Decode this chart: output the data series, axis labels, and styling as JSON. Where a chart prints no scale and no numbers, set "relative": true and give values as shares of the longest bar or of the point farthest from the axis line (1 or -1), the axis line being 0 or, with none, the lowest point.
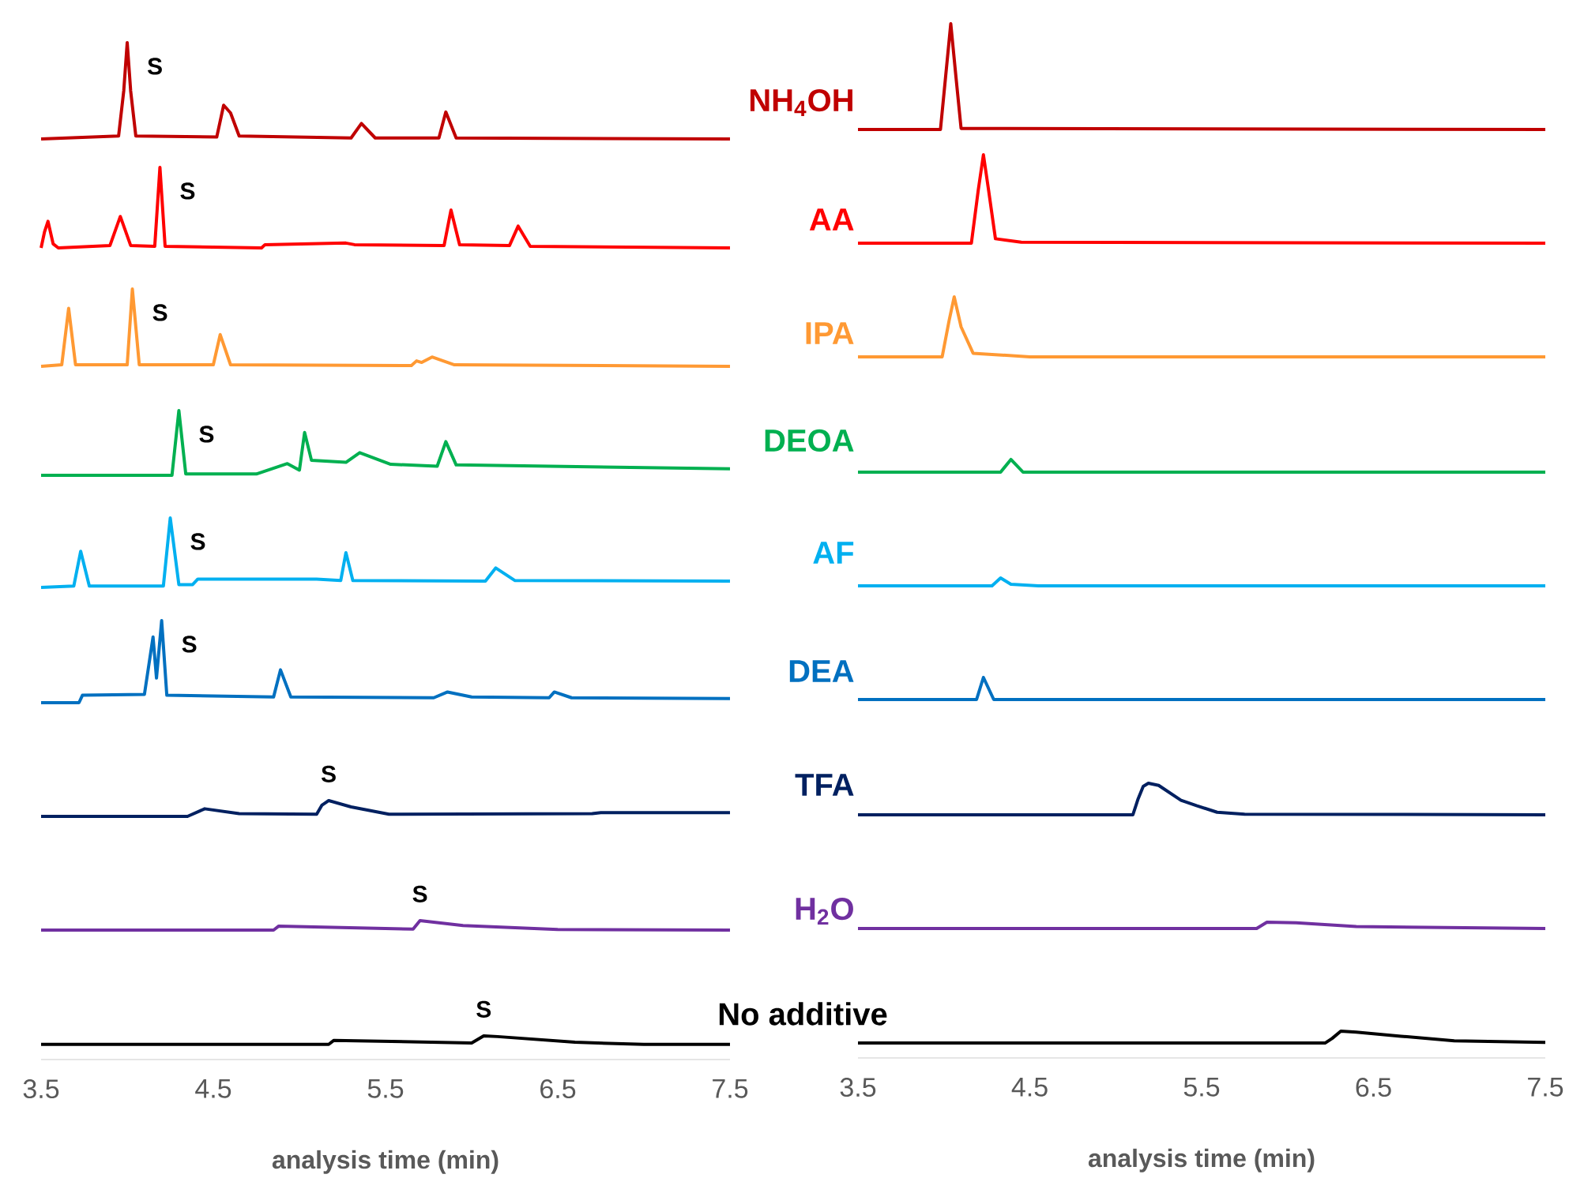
{
  "chart_data": [
    {
      "type": "line",
      "relative": true,
      "xlim": [
        3.5,
        7.5
      ],
      "tick_labels": false,
      "annotations": [
        {
          "text": "S",
          "x": 4.0,
          "y": 1.0
        }
      ],
      "series": [
        {
          "name": "NH$_{4}$OH",
          "color": "#c00000",
          "x": [
            3.5,
            3.95,
            3.98,
            4.0,
            4.02,
            4.05,
            4.52,
            4.56,
            4.6,
            4.65,
            5.3,
            5.36,
            5.44,
            5.81,
            5.85,
            5.91,
            7.5
          ],
          "values": [
            0.0,
            0.03,
            0.5,
            1.0,
            0.5,
            0.03,
            0.02,
            0.35,
            0.27,
            0.03,
            0.01,
            0.16,
            0.01,
            0.01,
            0.28,
            0.01,
            0.0
          ]
        }
      ]
    },
    {
      "type": "line",
      "relative": true,
      "xlim": [
        3.5,
        7.5
      ],
      "tick_labels": false,
      "series": [
        {
          "color": "#c00000",
          "x": [
            3.5,
            3.98,
            4.01,
            4.04,
            4.07,
            4.1,
            7.5
          ],
          "values": [
            0.0,
            0.0,
            0.5,
            1.0,
            0.5,
            0.01,
            0.0
          ]
        }
      ]
    },
    {
      "type": "line",
      "relative": true,
      "xlim": [
        3.5,
        7.5
      ],
      "tick_labels": false,
      "annotations": [
        {
          "text": "S",
          "x": 4.19,
          "y": 1.0
        }
      ],
      "series": [
        {
          "name": "AA",
          "color": "#ff0000",
          "x": [
            3.5,
            3.52,
            3.54,
            3.57,
            3.6,
            3.9,
            3.96,
            4.02,
            4.16,
            4.19,
            4.22,
            4.78,
            4.8,
            5.27,
            5.32,
            5.84,
            5.88,
            5.93,
            6.22,
            6.27,
            6.34,
            7.5
          ],
          "values": [
            0.0,
            0.2,
            0.33,
            0.05,
            0.0,
            0.03,
            0.39,
            0.03,
            0.02,
            1.0,
            0.02,
            0.0,
            0.04,
            0.06,
            0.04,
            0.03,
            0.47,
            0.04,
            0.03,
            0.27,
            0.02,
            0.0
          ]
        }
      ]
    },
    {
      "type": "line",
      "relative": true,
      "xlim": [
        3.5,
        7.5
      ],
      "tick_labels": false,
      "series": [
        {
          "color": "#ff0000",
          "x": [
            3.5,
            4.16,
            4.2,
            4.23,
            4.26,
            4.3,
            4.45,
            7.5
          ],
          "values": [
            0.0,
            0.0,
            0.6,
            1.0,
            0.6,
            0.05,
            0.01,
            0.0
          ]
        }
      ]
    },
    {
      "type": "line",
      "relative": true,
      "xlim": [
        3.5,
        7.5
      ],
      "tick_labels": false,
      "annotations": [
        {
          "text": "S",
          "x": 4.03,
          "y": 1.0
        }
      ],
      "series": [
        {
          "name": "IPA",
          "color": "#ff9933",
          "x": [
            3.5,
            3.62,
            3.66,
            3.7,
            4.0,
            4.03,
            4.07,
            4.5,
            4.54,
            4.6,
            5.65,
            5.68,
            5.71,
            5.77,
            5.9,
            7.5
          ],
          "values": [
            0.0,
            0.02,
            0.75,
            0.02,
            0.02,
            1.0,
            0.02,
            0.02,
            0.41,
            0.02,
            0.01,
            0.07,
            0.05,
            0.12,
            0.02,
            0.0
          ]
        }
      ]
    },
    {
      "type": "line",
      "relative": true,
      "xlim": [
        3.5,
        7.5
      ],
      "tick_labels": false,
      "series": [
        {
          "color": "#ff9933",
          "x": [
            3.5,
            3.99,
            4.03,
            4.06,
            4.1,
            4.17,
            4.5,
            7.5
          ],
          "values": [
            0.0,
            0.0,
            0.6,
            1.0,
            0.5,
            0.06,
            0.0,
            0.0
          ]
        }
      ]
    },
    {
      "type": "line",
      "relative": true,
      "xlim": [
        3.5,
        7.5
      ],
      "tick_labels": false,
      "annotations": [
        {
          "text": "S",
          "x": 4.3,
          "y": 1.0
        }
      ],
      "series": [
        {
          "name": "DEOA",
          "color": "#00b050",
          "x": [
            3.5,
            4.26,
            4.3,
            4.34,
            4.75,
            4.93,
            5.0,
            5.03,
            5.07,
            5.27,
            5.35,
            5.53,
            5.8,
            5.85,
            5.91,
            7.5
          ],
          "values": [
            0.0,
            0.0,
            1.0,
            0.02,
            0.02,
            0.18,
            0.08,
            0.66,
            0.23,
            0.2,
            0.35,
            0.17,
            0.14,
            0.52,
            0.16,
            0.1
          ]
        }
      ]
    },
    {
      "type": "line",
      "relative": true,
      "xlim": [
        3.5,
        7.5
      ],
      "tick_labels": false,
      "series": [
        {
          "color": "#00b050",
          "x": [
            3.5,
            4.33,
            4.39,
            4.46,
            7.5
          ],
          "values": [
            0.0,
            0.0,
            1.0,
            0.0,
            0.0
          ]
        }
      ]
    },
    {
      "type": "line",
      "relative": true,
      "xlim": [
        3.5,
        7.5
      ],
      "tick_labels": false,
      "annotations": [
        {
          "text": "S",
          "x": 4.25,
          "y": 1.0
        }
      ],
      "series": [
        {
          "name": "AF",
          "color": "#00b0f0",
          "x": [
            3.5,
            3.69,
            3.73,
            3.78,
            4.21,
            4.25,
            4.3,
            4.38,
            4.41,
            5.1,
            5.24,
            5.27,
            5.31,
            6.08,
            6.14,
            6.25,
            7.5
          ],
          "values": [
            0.0,
            0.02,
            0.52,
            0.02,
            0.02,
            1.0,
            0.04,
            0.04,
            0.12,
            0.12,
            0.1,
            0.5,
            0.1,
            0.09,
            0.28,
            0.1,
            0.09
          ]
        }
      ]
    },
    {
      "type": "line",
      "relative": true,
      "xlim": [
        3.5,
        7.5
      ],
      "tick_labels": false,
      "series": [
        {
          "color": "#00b0f0",
          "x": [
            3.5,
            4.28,
            4.33,
            4.39,
            4.55,
            7.5
          ],
          "values": [
            0.0,
            0.0,
            1.0,
            0.2,
            0.0,
            0.0
          ]
        }
      ]
    },
    {
      "type": "line",
      "relative": true,
      "xlim": [
        3.5,
        7.5
      ],
      "tick_labels": false,
      "annotations": [
        {
          "text": "S",
          "x": 4.2,
          "y": 1.0
        }
      ],
      "series": [
        {
          "name": "DEA",
          "color": "#0070c0",
          "x": [
            3.5,
            3.72,
            3.74,
            4.1,
            4.15,
            4.17,
            4.2,
            4.23,
            4.85,
            4.89,
            4.95,
            5.78,
            5.86,
            6.0,
            6.45,
            6.48,
            6.58,
            7.5
          ],
          "values": [
            0.0,
            0.0,
            0.09,
            0.1,
            0.8,
            0.3,
            1.0,
            0.09,
            0.07,
            0.4,
            0.07,
            0.06,
            0.13,
            0.07,
            0.06,
            0.13,
            0.06,
            0.05
          ]
        }
      ]
    },
    {
      "type": "line",
      "relative": true,
      "xlim": [
        3.5,
        7.5
      ],
      "tick_labels": false,
      "series": [
        {
          "color": "#0070c0",
          "x": [
            3.5,
            4.19,
            4.23,
            4.29,
            7.5
          ],
          "values": [
            0.0,
            0.0,
            1.0,
            0.0,
            0.0
          ]
        }
      ]
    },
    {
      "type": "line",
      "relative": true,
      "xlim": [
        3.5,
        7.5
      ],
      "tick_labels": false,
      "annotations": [
        {
          "text": "S",
          "x": 5.17,
          "y": 1.0
        }
      ],
      "series": [
        {
          "name": "TFA",
          "color": "#002060",
          "x": [
            3.5,
            4.35,
            4.45,
            4.65,
            5.1,
            5.13,
            5.17,
            5.3,
            5.52,
            6.7,
            6.75,
            7.5
          ],
          "values": [
            0.0,
            0.0,
            0.48,
            0.17,
            0.14,
            0.7,
            1.0,
            0.6,
            0.14,
            0.17,
            0.24,
            0.24
          ]
        }
      ]
    },
    {
      "type": "line",
      "relative": true,
      "xlim": [
        3.5,
        7.5
      ],
      "tick_labels": false,
      "series": [
        {
          "color": "#002060",
          "x": [
            3.5,
            5.1,
            5.13,
            5.16,
            5.19,
            5.25,
            5.38,
            5.47,
            5.59,
            5.75,
            7.5
          ],
          "values": [
            0.0,
            0.0,
            0.5,
            0.9,
            1.0,
            0.93,
            0.46,
            0.29,
            0.08,
            0.02,
            0.0
          ]
        }
      ]
    },
    {
      "type": "line",
      "relative": true,
      "xlim": [
        3.5,
        7.5
      ],
      "tick_labels": false,
      "annotations": [
        {
          "text": "S",
          "x": 5.7,
          "y": 1.0
        }
      ],
      "series": [
        {
          "name": "H$_{2}$O",
          "color": "#7030a0",
          "x": [
            3.5,
            4.85,
            4.88,
            5.66,
            5.7,
            5.95,
            6.5,
            7.5
          ],
          "values": [
            0.0,
            0.0,
            0.42,
            0.1,
            1.0,
            0.47,
            0.05,
            0.0
          ]
        }
      ]
    },
    {
      "type": "line",
      "relative": true,
      "xlim": [
        3.5,
        7.5
      ],
      "tick_labels": false,
      "series": [
        {
          "color": "#7030a0",
          "x": [
            3.5,
            5.82,
            5.88,
            6.05,
            6.4,
            7.5
          ],
          "values": [
            0.0,
            0.0,
            1.0,
            0.9,
            0.3,
            0.0
          ]
        }
      ]
    },
    {
      "type": "line",
      "relative": true,
      "xlim": [
        3.5,
        7.5
      ],
      "xticks": [
        3.5,
        4.5,
        5.5,
        6.5,
        7.5
      ],
      "tick_labels": "x",
      "xlabel": "analysis time (min)",
      "annotations": [
        {
          "text": "S",
          "x": 6.07,
          "y": 1.0
        }
      ],
      "series": [
        {
          "name": "No additive",
          "color": "#000000",
          "x": [
            3.5,
            5.17,
            5.2,
            6.0,
            6.07,
            6.15,
            6.6,
            7.0,
            7.5
          ],
          "values": [
            0.64,
            0.64,
            0.81,
            0.7,
            1.0,
            0.97,
            0.73,
            0.64,
            0.64
          ]
        }
      ]
    },
    {
      "type": "line",
      "relative": true,
      "xlim": [
        3.5,
        7.5
      ],
      "xticks": [
        3.5,
        4.5,
        5.5,
        6.5,
        7.5
      ],
      "tick_labels": "x",
      "xlabel": "analysis time (min)",
      "series": [
        {
          "color": "#000000",
          "x": [
            3.5,
            6.22,
            6.26,
            6.31,
            6.4,
            6.66,
            6.97,
            7.5
          ],
          "values": [
            0.56,
            0.56,
            0.73,
            1.0,
            0.96,
            0.81,
            0.64,
            0.58
          ]
        }
      ]
    }
  ]
}
